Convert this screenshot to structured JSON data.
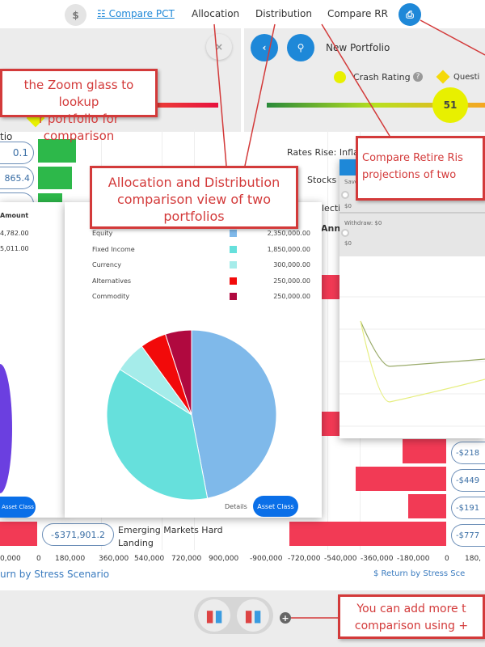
{
  "nav": {
    "dollar_icon": "$",
    "compare_pct": "Compare PCT",
    "allocation": "Allocation",
    "distribution": "Distribution",
    "compare_rr": "Compare RR"
  },
  "left_panel": {
    "close": "×",
    "partial_label": "tio",
    "pills": [
      "0.1",
      "865.4",
      ""
    ],
    "last_pill": "-$371,901.2",
    "last_scenario": "Emerging Markets Hard Landing",
    "axis_ticks": [
      "0,000",
      "0",
      "180,000",
      "360,000",
      "540,000",
      "720,000",
      "900,000"
    ],
    "axis_title": "urn by Stress Scenario"
  },
  "right_panel": {
    "portfolio_name": "New Portfolio",
    "crash_rating_label": "Crash Rating",
    "question_label": "Questi",
    "score": "51",
    "scenarios": [
      "Rates Rise: Inflat",
      "Stocks U",
      "lecti",
      "Annu"
    ],
    "pills": [
      "-$218",
      "-$449",
      "-$191",
      "-$777"
    ],
    "axis_ticks": [
      "-900,000",
      "-720,000",
      "-540,000",
      "-360,000",
      "-180,000",
      "0",
      "180,"
    ],
    "axis_title": "$ Return by Stress Sce"
  },
  "detail_popup_left": {
    "header": "Amount",
    "rows": [
      "4,782.00",
      "5,011.00"
    ],
    "button": "Asset Class"
  },
  "allocation_popup": {
    "rows": [
      {
        "label": "Equity",
        "amount": "2,350,000.00",
        "value": 2350000,
        "color": "#7fb9ea"
      },
      {
        "label": "Fixed Income",
        "amount": "1,850,000.00",
        "value": 1850000,
        "color": "#66e0dc"
      },
      {
        "label": "Currency",
        "amount": "300,000.00",
        "value": 300000,
        "color": "#a5ecea"
      },
      {
        "label": "Alternatives",
        "amount": "250,000.00",
        "value": 250000,
        "color": "#f20a0a"
      },
      {
        "label": "Commodity",
        "amount": "250,000.00",
        "value": 250000,
        "color": "#b0093f"
      }
    ],
    "details": "Details",
    "button": "Asset Class"
  },
  "rr_popup": {
    "save_label": "Save",
    "save_value": "$0",
    "withdraw_label": "Withdraw: $0",
    "withdraw_value": "$0"
  },
  "callouts": {
    "zoom": "the Zoom glass to lookup\nr portfolio for comparison",
    "alloc": "Allocation and Distribution comparison view of two portfolios",
    "rr": "Compare Retire Ris\nprojections of two",
    "add": "You can add more t\ncomparison using + "
  },
  "colors": {
    "accent": "#1e88d8",
    "annotation": "#d33a3a",
    "loss": "#f23a55",
    "gain": "#2db84a"
  }
}
